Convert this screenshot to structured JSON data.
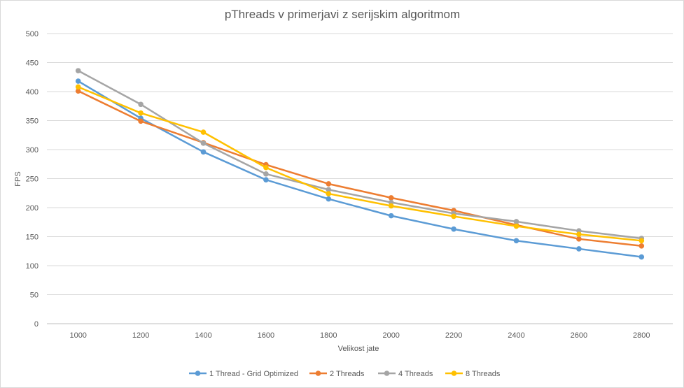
{
  "chart_data": {
    "type": "line",
    "title": "pThreads v primerjavi z serijskim algoritmom",
    "xlabel": "Velikost jate",
    "ylabel": "FPS",
    "categories": [
      "1000",
      "1200",
      "1400",
      "1600",
      "1800",
      "2000",
      "2200",
      "2400",
      "2600",
      "2800"
    ],
    "ylim": [
      0,
      500
    ],
    "yticks": [
      0,
      50,
      100,
      150,
      200,
      250,
      300,
      350,
      400,
      450,
      500
    ],
    "grid": true,
    "legend_position": "bottom",
    "series": [
      {
        "name": "1 Thread - Grid Optimized",
        "color": "#5b9bd5",
        "values": [
          418,
          354,
          296,
          248,
          215,
          186,
          163,
          143,
          129,
          115
        ]
      },
      {
        "name": "2 Threads",
        "color": "#ed7d31",
        "values": [
          401,
          349,
          312,
          274,
          241,
          217,
          195,
          170,
          146,
          134
        ]
      },
      {
        "name": "4 Threads",
        "color": "#a5a5a5",
        "values": [
          436,
          378,
          311,
          258,
          231,
          209,
          190,
          176,
          160,
          147
        ]
      },
      {
        "name": "8 Threads",
        "color": "#ffc000",
        "values": [
          408,
          363,
          330,
          269,
          224,
          203,
          185,
          168,
          154,
          143
        ]
      }
    ]
  }
}
